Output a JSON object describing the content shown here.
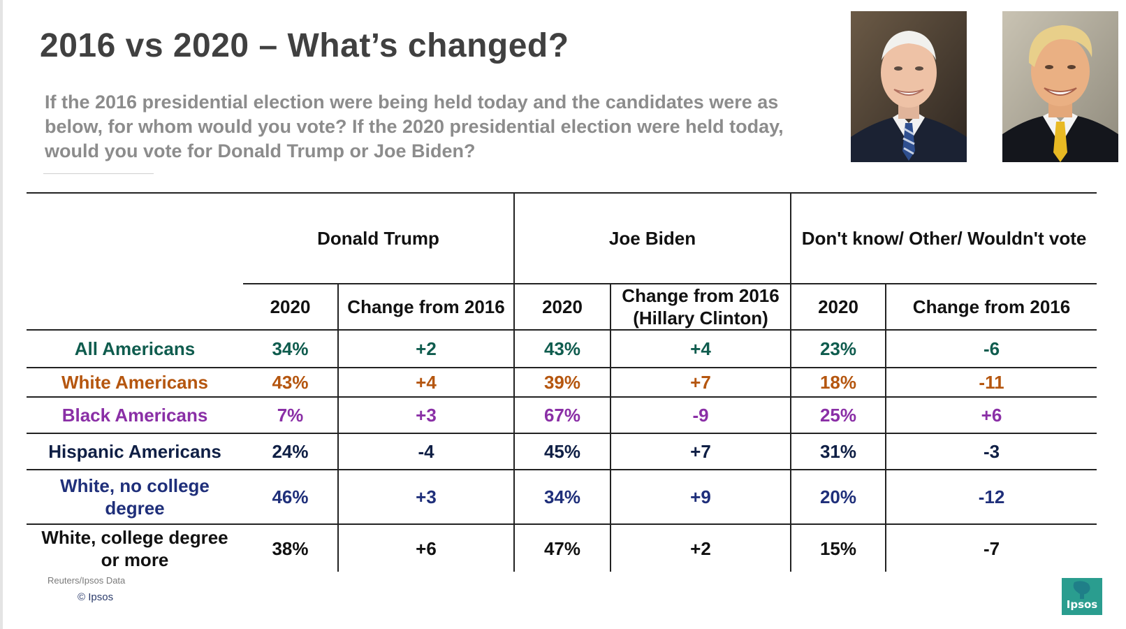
{
  "slide": {
    "title": "2016 vs 2020 – What’s changed?",
    "question": "If the 2016 presidential election were being held today and the candidates were as below, for whom would you vote? If the 2020 presidential election were held today, would you vote for Donald Trump or Joe Biden?",
    "source": "Reuters/Ipsos Data",
    "copyright": "© Ipsos",
    "logo_text": "Ipsos",
    "logo_color": "#2a9d8f"
  },
  "chart_data": {
    "type": "table",
    "column_groups": [
      "Donald Trump",
      "Joe Biden",
      "Don't know/ Other/ Wouldn't vote"
    ],
    "sub_headers": [
      "2020",
      "Change from 2016",
      "2020",
      "Change from 2016 (Hillary Clinton)",
      "2020",
      "Change from 2016"
    ],
    "rows": [
      {
        "label": "All Americans",
        "color": "#0f5c4e",
        "values": [
          "34%",
          "+2",
          "43%",
          "+4",
          "23%",
          "-6"
        ]
      },
      {
        "label": "White Americans",
        "color": "#b5560f",
        "values": [
          "43%",
          "+4",
          "39%",
          "+7",
          "18%",
          "-11"
        ]
      },
      {
        "label": "Black Americans",
        "color": "#8a2fa6",
        "values": [
          "7%",
          "+3",
          "67%",
          "-9",
          "25%",
          "+6"
        ]
      },
      {
        "label": "Hispanic Americans",
        "color": "#0f1f45",
        "values": [
          "24%",
          "-4",
          "45%",
          "+7",
          "31%",
          "-3"
        ]
      },
      {
        "label": "White, no college degree",
        "color": "#1f2f7a",
        "values": [
          "46%",
          "+3",
          "34%",
          "+9",
          "20%",
          "-12"
        ]
      },
      {
        "label": "White, college degree or more",
        "color": "#111111",
        "values": [
          "38%",
          "+6",
          "47%",
          "+2",
          "15%",
          "-7"
        ]
      }
    ]
  }
}
